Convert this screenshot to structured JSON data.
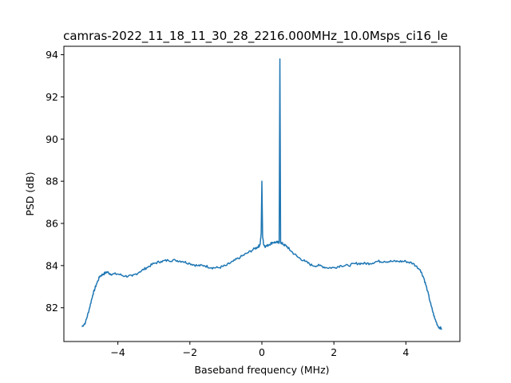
{
  "chart_data": {
    "type": "line",
    "title": "camras-2022_11_18_11_30_28_2216.000MHz_10.0Msps_ci16_le",
    "xlabel": "Baseband frequency (MHz)",
    "ylabel": "PSD (dB)",
    "xlim": [
      -5.5,
      5.5
    ],
    "ylim": [
      80.4,
      94.4
    ],
    "xticks": [
      -4,
      -2,
      0,
      2,
      4
    ],
    "xtick_labels": [
      "−4",
      "−2",
      "0",
      "2",
      "4"
    ],
    "yticks": [
      82,
      84,
      86,
      88,
      90,
      92,
      94
    ],
    "ytick_labels": [
      "82",
      "84",
      "86",
      "88",
      "90",
      "92",
      "94"
    ],
    "grid": false,
    "color": "#1f77b4",
    "series": [
      {
        "x": [
          -5.0,
          -4.9,
          -4.8,
          -4.7,
          -4.6,
          -4.5,
          -4.4,
          -4.3,
          -4.2,
          -4.0,
          -3.8,
          -3.6,
          -3.4,
          -3.2,
          -3.0,
          -2.8,
          -2.6,
          -2.4,
          -2.2,
          -2.0,
          -1.8,
          -1.6,
          -1.4,
          -1.2,
          -1.0,
          -0.8,
          -0.6,
          -0.4,
          -0.2,
          -0.1,
          -0.05,
          -0.02,
          0.0,
          0.02,
          0.05,
          0.1,
          0.2,
          0.3,
          0.4,
          0.48,
          0.5,
          0.52,
          0.6,
          0.7,
          0.8,
          1.0,
          1.2,
          1.4,
          1.6,
          1.8,
          2.0,
          2.2,
          2.4,
          2.6,
          2.8,
          3.0,
          3.2,
          3.4,
          3.6,
          3.8,
          4.0,
          4.2,
          4.4,
          4.5,
          4.6,
          4.7,
          4.8,
          4.9,
          5.0
        ],
        "y": [
          81.1,
          81.3,
          81.9,
          82.6,
          83.1,
          83.5,
          83.6,
          83.7,
          83.6,
          83.6,
          83.5,
          83.5,
          83.7,
          83.9,
          84.1,
          84.2,
          84.25,
          84.25,
          84.2,
          84.1,
          84.0,
          84.0,
          83.9,
          83.9,
          84.0,
          84.2,
          84.4,
          84.6,
          84.8,
          84.9,
          85.0,
          85.5,
          88.0,
          85.4,
          85.0,
          84.9,
          85.0,
          85.1,
          85.1,
          85.1,
          93.8,
          85.1,
          85.0,
          84.9,
          84.7,
          84.4,
          84.2,
          84.0,
          84.0,
          83.9,
          83.9,
          84.0,
          84.0,
          84.1,
          84.1,
          84.1,
          84.2,
          84.2,
          84.2,
          84.2,
          84.2,
          84.1,
          83.8,
          83.4,
          82.8,
          82.1,
          81.5,
          81.1,
          81.0
        ]
      }
    ]
  }
}
